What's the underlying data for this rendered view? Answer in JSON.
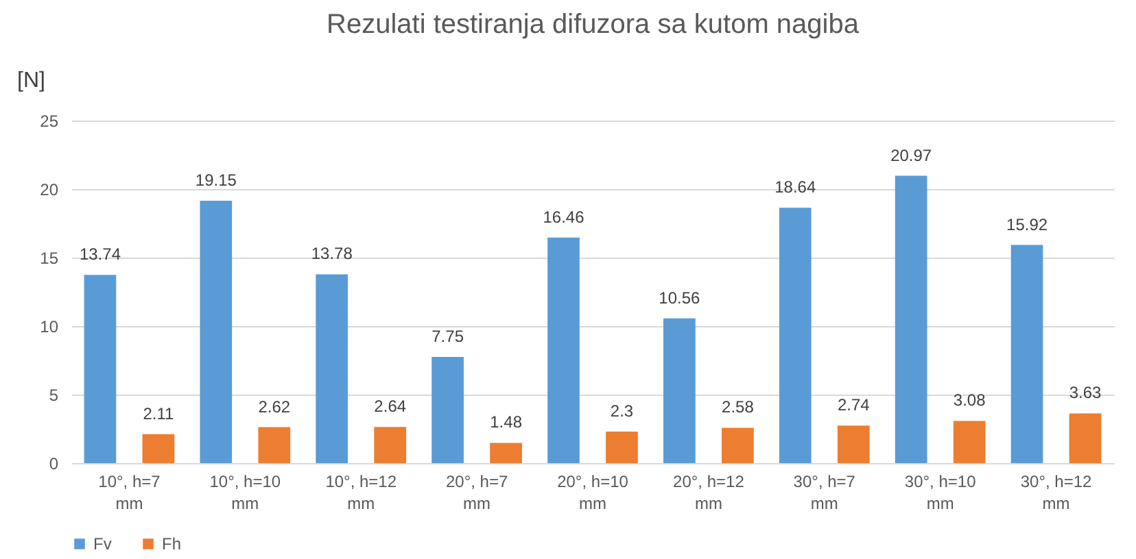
{
  "chart_data": {
    "type": "bar",
    "title": "Rezulati testiranja difuzora sa kutom nagiba",
    "ylabel": "[N]",
    "categories": [
      "10°, h=7 mm",
      "10°, h=10 mm",
      "10°, h=12 mm",
      "20°, h=7 mm",
      "20°, h=10 mm",
      "20°, h=12 mm",
      "30°, h=7 mm",
      "30°, h=10 mm",
      "30°, h=12 mm"
    ],
    "series": [
      {
        "name": "Fv",
        "color": "#5b9bd5",
        "values": [
          13.74,
          19.15,
          13.78,
          7.75,
          16.46,
          10.56,
          18.64,
          20.97,
          15.92
        ]
      },
      {
        "name": "Fh",
        "color": "#ed7d31",
        "values": [
          2.11,
          2.62,
          2.64,
          1.48,
          2.3,
          2.58,
          2.74,
          3.08,
          3.63
        ]
      }
    ],
    "ylim": [
      0,
      25
    ],
    "yticks": [
      0,
      5,
      10,
      15,
      20,
      25
    ],
    "grid": "y",
    "legend": "bottom",
    "data_labels": true
  }
}
